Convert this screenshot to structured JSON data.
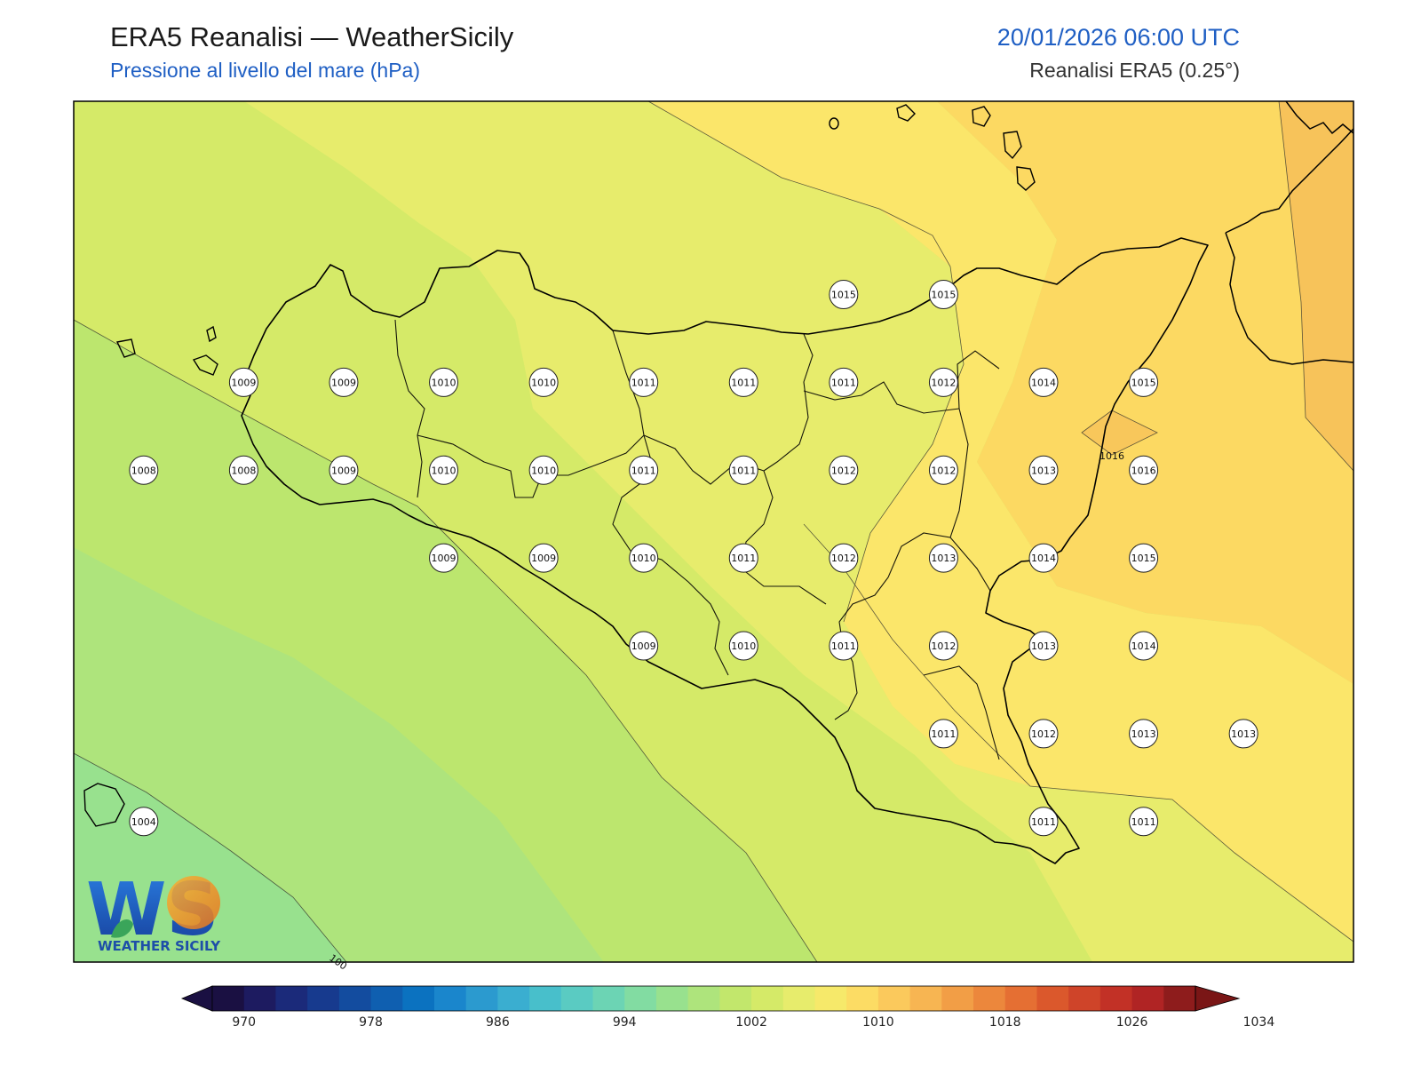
{
  "header": {
    "title": "ERA5 Reanalisi — WeatherSicily",
    "subtitle": "Pressione al livello del mare (hPa)",
    "datetime": "20/01/2026 06:00 UTC",
    "source": "Reanalisi ERA5 (0.25°)"
  },
  "map": {
    "contour_labels": [
      "1016",
      "100"
    ],
    "pressure_points": [
      {
        "value": "1015",
        "lon": 15.25,
        "lat": 38.25
      },
      {
        "value": "1015",
        "lon": 15.75,
        "lat": 38.25
      },
      {
        "value": "1009",
        "lon": 12.25,
        "lat": 38.0
      },
      {
        "value": "1009",
        "lon": 12.75,
        "lat": 38.0
      },
      {
        "value": "1010",
        "lon": 13.25,
        "lat": 38.0
      },
      {
        "value": "1010",
        "lon": 13.75,
        "lat": 38.0
      },
      {
        "value": "1011",
        "lon": 14.25,
        "lat": 38.0
      },
      {
        "value": "1011",
        "lon": 14.75,
        "lat": 38.0
      },
      {
        "value": "1011",
        "lon": 15.25,
        "lat": 38.0
      },
      {
        "value": "1012",
        "lon": 15.75,
        "lat": 38.0
      },
      {
        "value": "1014",
        "lon": 16.25,
        "lat": 38.0
      },
      {
        "value": "1015",
        "lon": 16.75,
        "lat": 38.0
      },
      {
        "value": "1008",
        "lon": 11.75,
        "lat": 37.75
      },
      {
        "value": "1008",
        "lon": 12.25,
        "lat": 37.75
      },
      {
        "value": "1009",
        "lon": 12.75,
        "lat": 37.75
      },
      {
        "value": "1010",
        "lon": 13.25,
        "lat": 37.75
      },
      {
        "value": "1010",
        "lon": 13.75,
        "lat": 37.75
      },
      {
        "value": "1011",
        "lon": 14.25,
        "lat": 37.75
      },
      {
        "value": "1011",
        "lon": 14.75,
        "lat": 37.75
      },
      {
        "value": "1012",
        "lon": 15.25,
        "lat": 37.75
      },
      {
        "value": "1012",
        "lon": 15.75,
        "lat": 37.75
      },
      {
        "value": "1013",
        "lon": 16.25,
        "lat": 37.75
      },
      {
        "value": "1016",
        "lon": 16.75,
        "lat": 37.75
      },
      {
        "value": "1009",
        "lon": 13.25,
        "lat": 37.5
      },
      {
        "value": "1009",
        "lon": 13.75,
        "lat": 37.5
      },
      {
        "value": "1010",
        "lon": 14.25,
        "lat": 37.5
      },
      {
        "value": "1011",
        "lon": 14.75,
        "lat": 37.5
      },
      {
        "value": "1012",
        "lon": 15.25,
        "lat": 37.5
      },
      {
        "value": "1013",
        "lon": 15.75,
        "lat": 37.5
      },
      {
        "value": "1014",
        "lon": 16.25,
        "lat": 37.5
      },
      {
        "value": "1015",
        "lon": 16.75,
        "lat": 37.5
      },
      {
        "value": "1009",
        "lon": 14.25,
        "lat": 37.25
      },
      {
        "value": "1010",
        "lon": 14.75,
        "lat": 37.25
      },
      {
        "value": "1011",
        "lon": 15.25,
        "lat": 37.25
      },
      {
        "value": "1012",
        "lon": 15.75,
        "lat": 37.25
      },
      {
        "value": "1013",
        "lon": 16.25,
        "lat": 37.25
      },
      {
        "value": "1014",
        "lon": 16.75,
        "lat": 37.25
      },
      {
        "value": "1011",
        "lon": 15.75,
        "lat": 37.0
      },
      {
        "value": "1012",
        "lon": 16.25,
        "lat": 37.0
      },
      {
        "value": "1013",
        "lon": 16.75,
        "lat": 37.0
      },
      {
        "value": "1013",
        "lon": 17.25,
        "lat": 37.0
      },
      {
        "value": "1011",
        "lon": 16.25,
        "lat": 36.75
      },
      {
        "value": "1011",
        "lon": 16.75,
        "lat": 36.75
      },
      {
        "value": "1004",
        "lon": 11.75,
        "lat": 36.75
      }
    ]
  },
  "colorbar": {
    "tick_labels": [
      "970",
      "978",
      "986",
      "994",
      "1002",
      "1010",
      "1018",
      "1026",
      "1034"
    ],
    "colors": [
      "#1a1042",
      "#1d1b60",
      "#1b2a7a",
      "#173a8e",
      "#134c9f",
      "#0f5fb0",
      "#0b72c0",
      "#1a86cc",
      "#2b9acf",
      "#3aaed0",
      "#48bfcb",
      "#5acbc2",
      "#6cd4b4",
      "#82dca2",
      "#98e18e",
      "#aee47c",
      "#c2e76c",
      "#d5ea68",
      "#e7ec6c",
      "#f6e96a",
      "#fcdc64",
      "#fbc95c",
      "#f7b552",
      "#f29e46",
      "#ec873c",
      "#e56f33",
      "#db582c",
      "#cf4429",
      "#c23126",
      "#b02424",
      "#8e1c1c"
    ],
    "extend_low_color": "#1a1042",
    "extend_high_color": "#7a1616"
  },
  "logo": {
    "letters": "WS",
    "caption": "WEATHER SICILY"
  }
}
